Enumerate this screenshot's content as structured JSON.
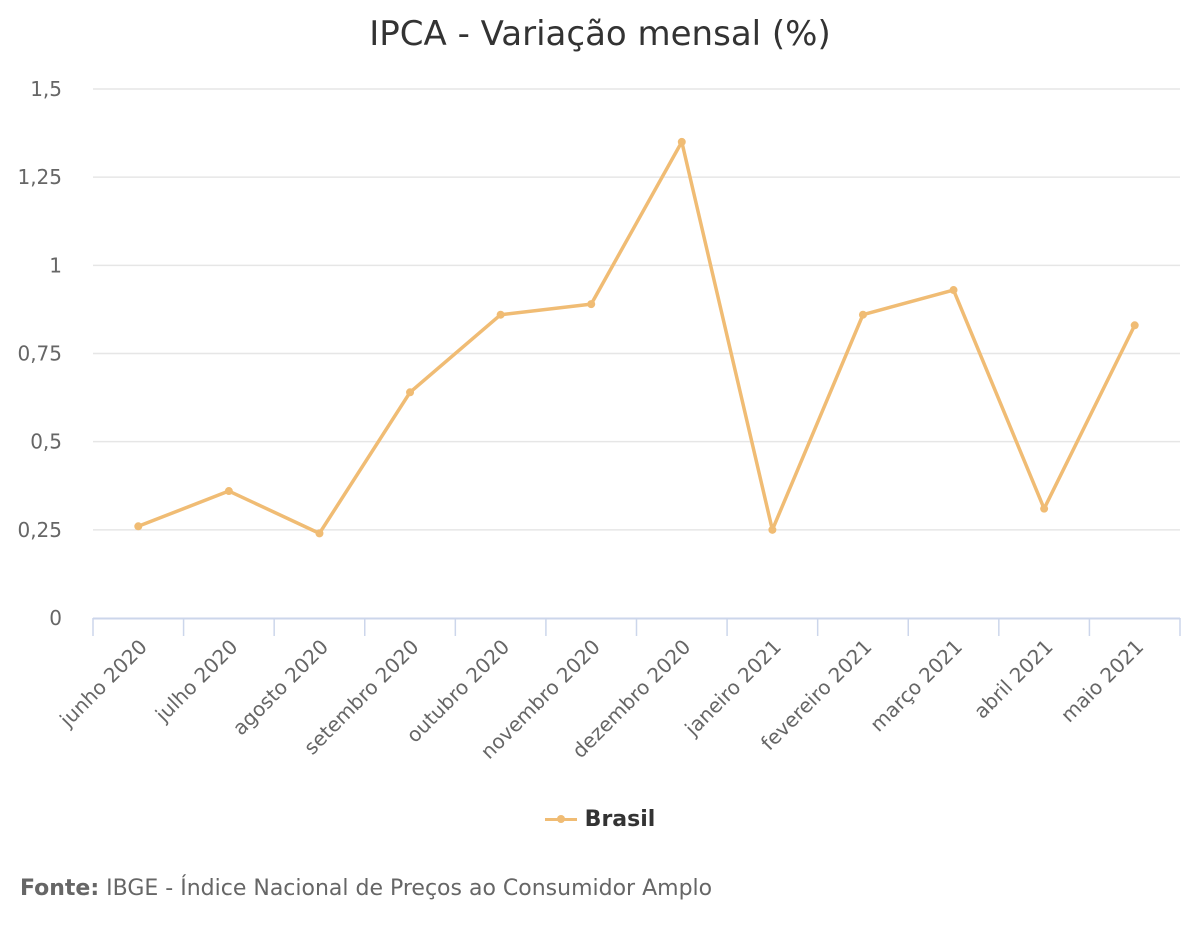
{
  "chart_data": {
    "type": "line",
    "title": "IPCA - Variação mensal (%)",
    "xlabel": "",
    "ylabel": "",
    "categories": [
      "junho 2020",
      "julho 2020",
      "agosto 2020",
      "setembro 2020",
      "outubro 2020",
      "novembro 2020",
      "dezembro 2020",
      "janeiro 2021",
      "fevereiro 2021",
      "março 2021",
      "abril 2021",
      "maio 2021"
    ],
    "series": [
      {
        "name": "Brasil",
        "color": "#f0bc74",
        "values": [
          0.26,
          0.36,
          0.24,
          0.64,
          0.86,
          0.89,
          1.35,
          0.25,
          0.86,
          0.93,
          0.31,
          0.83
        ]
      }
    ],
    "ylim": [
      0,
      1.5
    ],
    "yticks": [
      0,
      0.25,
      0.5,
      0.75,
      1,
      1.25,
      1.5
    ],
    "ytick_labels": [
      "0",
      "0,25",
      "0,5",
      "0,75",
      "1",
      "1,25",
      "1,5"
    ],
    "grid": true,
    "legend": "bottom-center"
  },
  "source": {
    "label": "Fonte:",
    "text": "IBGE - Índice Nacional de Preços ao Consumidor Amplo"
  },
  "colors": {
    "grid": "#e6e6e6",
    "axis": "#ccd6eb",
    "tick_text": "#666666"
  }
}
